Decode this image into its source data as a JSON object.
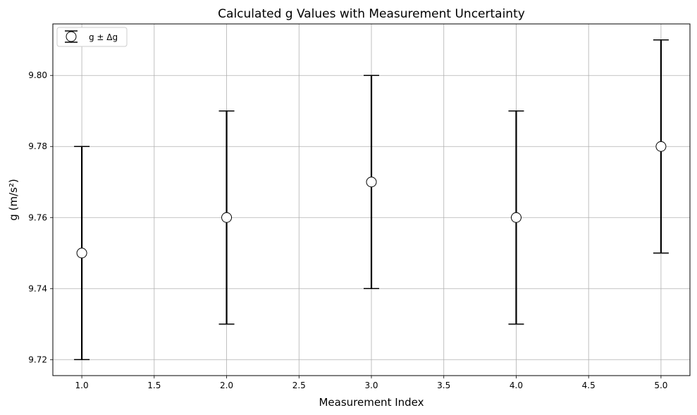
{
  "chart_data": {
    "type": "scatter",
    "title": "Calculated g Values with Measurement Uncertainty",
    "xlabel": "Measurement Index",
    "ylabel": "g (m/s²)",
    "xlim": [
      0.8,
      5.2
    ],
    "ylim": [
      9.7155,
      9.8145
    ],
    "xticks": [
      1.0,
      1.5,
      2.0,
      2.5,
      3.0,
      3.5,
      4.0,
      4.5,
      5.0
    ],
    "xtick_labels": [
      "1.0",
      "1.5",
      "2.0",
      "2.5",
      "3.0",
      "3.5",
      "4.0",
      "4.5",
      "5.0"
    ],
    "yticks": [
      9.72,
      9.74,
      9.76,
      9.78,
      9.8
    ],
    "ytick_labels": [
      "9.72",
      "9.74",
      "9.76",
      "9.78",
      "9.80"
    ],
    "grid": true,
    "legend_position": "top-left",
    "series": [
      {
        "name": "g ± Δg",
        "x": [
          1,
          2,
          3,
          4,
          5
        ],
        "y": [
          9.75,
          9.76,
          9.77,
          9.76,
          9.78
        ],
        "yerr": [
          0.03,
          0.03,
          0.03,
          0.03,
          0.03
        ],
        "marker_face_color": "#ffffff",
        "marker_edge_color": "#000000",
        "errorbar_color": "#000000"
      }
    ]
  }
}
